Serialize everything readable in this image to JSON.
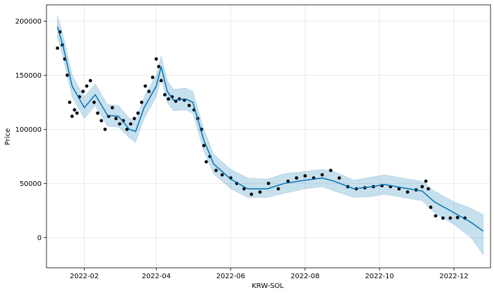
{
  "chart_data": {
    "type": "line",
    "xlabel": "KRW-SOL",
    "ylabel": "Price",
    "x_range": [
      "2022-01-01",
      "2022-12-31"
    ],
    "ylim": [
      -28000,
      215000
    ],
    "grid": true,
    "x_ticks": [
      "2022-02-01",
      "2022-04-01",
      "2022-06-01",
      "2022-08-01",
      "2022-10-01",
      "2022-12-01"
    ],
    "x_tick_labels": [
      "2022-02",
      "2022-04",
      "2022-06",
      "2022-08",
      "2022-10",
      "2022-12"
    ],
    "y_ticks": [
      0,
      50000,
      100000,
      150000,
      200000
    ],
    "y_tick_labels": [
      "0",
      "50000",
      "100000",
      "150000",
      "200000"
    ],
    "colors": {
      "observed": "#000000",
      "forecast": "#0072B2",
      "interval": "#0072B2"
    },
    "series": [
      {
        "kind": "observed",
        "x": [
          "2022-01-10",
          "2022-01-12",
          "2022-01-14",
          "2022-01-16",
          "2022-01-18",
          "2022-01-20",
          "2022-01-22",
          "2022-01-24",
          "2022-01-26",
          "2022-01-28",
          "2022-01-31",
          "2022-02-03",
          "2022-02-06",
          "2022-02-09",
          "2022-02-12",
          "2022-02-15",
          "2022-02-18",
          "2022-02-21",
          "2022-02-24",
          "2022-02-27",
          "2022-03-02",
          "2022-03-05",
          "2022-03-08",
          "2022-03-11",
          "2022-03-14",
          "2022-03-17",
          "2022-03-20",
          "2022-03-23",
          "2022-03-26",
          "2022-03-29",
          "2022-04-01",
          "2022-04-03",
          "2022-04-05",
          "2022-04-08",
          "2022-04-11",
          "2022-04-14",
          "2022-04-17",
          "2022-04-20",
          "2022-04-24",
          "2022-04-28",
          "2022-05-02",
          "2022-05-05",
          "2022-05-08",
          "2022-05-10",
          "2022-05-12",
          "2022-05-15",
          "2022-05-20",
          "2022-05-25",
          "2022-06-01",
          "2022-06-06",
          "2022-06-12",
          "2022-06-18",
          "2022-06-25",
          "2022-07-02",
          "2022-07-10",
          "2022-07-18",
          "2022-07-25",
          "2022-08-01",
          "2022-08-08",
          "2022-08-15",
          "2022-08-22",
          "2022-08-29",
          "2022-09-05",
          "2022-09-12",
          "2022-09-19",
          "2022-09-26",
          "2022-10-03",
          "2022-10-10",
          "2022-10-17",
          "2022-10-24",
          "2022-10-31",
          "2022-11-05",
          "2022-11-08",
          "2022-11-10",
          "2022-11-12",
          "2022-11-16",
          "2022-11-22",
          "2022-11-28",
          "2022-12-04",
          "2022-12-10"
        ],
        "y": [
          175000,
          190000,
          178000,
          165000,
          150000,
          125000,
          112000,
          118000,
          115000,
          130000,
          135000,
          140000,
          145000,
          125000,
          115000,
          108000,
          100000,
          112000,
          120000,
          110000,
          105000,
          108000,
          100000,
          105000,
          110000,
          115000,
          125000,
          140000,
          135000,
          148000,
          165000,
          158000,
          145000,
          132000,
          128000,
          130000,
          126000,
          128000,
          127000,
          122000,
          118000,
          110000,
          100000,
          85000,
          70000,
          75000,
          62000,
          58000,
          55000,
          50000,
          45000,
          40000,
          42000,
          50000,
          45000,
          52000,
          55000,
          57000,
          55000,
          58000,
          62000,
          55000,
          47000,
          45000,
          46000,
          47000,
          48000,
          47000,
          45000,
          42000,
          44000,
          47000,
          52000,
          45000,
          28000,
          20000,
          18000,
          18000,
          18500,
          18000
        ]
      },
      {
        "kind": "forecast",
        "x": [
          "2022-01-10",
          "2022-01-15",
          "2022-01-22",
          "2022-02-01",
          "2022-02-10",
          "2022-02-20",
          "2022-03-01",
          "2022-03-10",
          "2022-03-15",
          "2022-03-22",
          "2022-04-01",
          "2022-04-05",
          "2022-04-10",
          "2022-04-15",
          "2022-04-25",
          "2022-05-01",
          "2022-05-10",
          "2022-05-18",
          "2022-06-01",
          "2022-06-15",
          "2022-07-01",
          "2022-07-15",
          "2022-08-01",
          "2022-08-15",
          "2022-08-25",
          "2022-09-10",
          "2022-09-25",
          "2022-10-05",
          "2022-10-20",
          "2022-11-05",
          "2022-11-15",
          "2022-12-01",
          "2022-12-15",
          "2022-12-25"
        ],
        "y": [
          195000,
          175000,
          140000,
          120000,
          132000,
          113000,
          112000,
          100000,
          98000,
          120000,
          140000,
          158000,
          135000,
          127000,
          128000,
          125000,
          90000,
          68000,
          54000,
          45000,
          45000,
          50000,
          53000,
          55000,
          52000,
          45000,
          47000,
          49000,
          46000,
          43000,
          33000,
          23000,
          14000,
          6000
        ],
        "lower": [
          185000,
          165000,
          130000,
          110000,
          122000,
          103000,
          102000,
          92000,
          88000,
          110000,
          130000,
          148000,
          125000,
          117000,
          118000,
          115000,
          80000,
          59000,
          45000,
          37000,
          37000,
          41000,
          45000,
          47000,
          43000,
          37000,
          38000,
          40000,
          37000,
          34000,
          23000,
          12000,
          0,
          -16000
        ],
        "upper": [
          205000,
          185000,
          150000,
          130000,
          142000,
          123000,
          122000,
          110000,
          108000,
          130000,
          150000,
          168000,
          145000,
          137000,
          138000,
          135000,
          100000,
          77000,
          63000,
          55000,
          54000,
          59000,
          61000,
          63000,
          61000,
          53000,
          56000,
          58000,
          55000,
          52000,
          43000,
          33000,
          27000,
          21000
        ]
      }
    ]
  }
}
